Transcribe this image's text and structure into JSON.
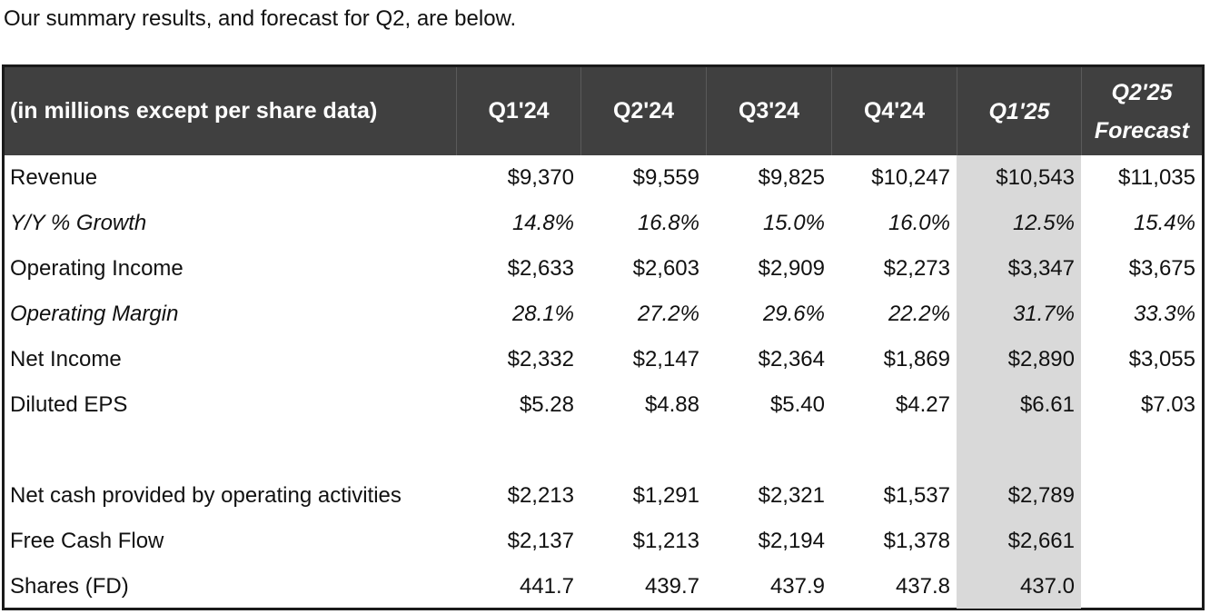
{
  "intro": "Our summary results, and forecast for Q2, are below.",
  "table": {
    "header": {
      "label": "(in millions except per share data)",
      "columns": [
        "Q1'24",
        "Q2'24",
        "Q3'24",
        "Q4'24",
        "Q1'25"
      ],
      "forecast_line1": "Q2'25",
      "forecast_line2": "Forecast"
    },
    "rows": [
      {
        "label": "Revenue",
        "values": [
          "$9,370",
          "$9,559",
          "$9,825",
          "$10,247",
          "$10,543",
          "$11,035"
        ]
      },
      {
        "label": "Y/Y % Growth",
        "values": [
          "14.8%",
          "16.8%",
          "15.0%",
          "16.0%",
          "12.5%",
          "15.4%"
        ]
      },
      {
        "label": "Operating Income",
        "values": [
          "$2,633",
          "$2,603",
          "$2,909",
          "$2,273",
          "$3,347",
          "$3,675"
        ]
      },
      {
        "label": "Operating Margin",
        "values": [
          "28.1%",
          "27.2%",
          "29.6%",
          "22.2%",
          "31.7%",
          "33.3%"
        ]
      },
      {
        "label": "Net Income",
        "values": [
          "$2,332",
          "$2,147",
          "$2,364",
          "$1,869",
          "$2,890",
          "$3,055"
        ]
      },
      {
        "label": "Diluted EPS",
        "values": [
          "$5.28",
          "$4.88",
          "$5.40",
          "$4.27",
          "$6.61",
          "$7.03"
        ]
      },
      {
        "label": "",
        "values": [
          "",
          "",
          "",
          "",
          "",
          ""
        ]
      },
      {
        "label": "Net cash provided by operating activities",
        "values": [
          "$2,213",
          "$1,291",
          "$2,321",
          "$1,537",
          "$2,789",
          ""
        ]
      },
      {
        "label": "Free Cash Flow",
        "values": [
          "$2,137",
          "$1,213",
          "$2,194",
          "$1,378",
          "$2,661",
          ""
        ]
      },
      {
        "label": "Shares (FD)",
        "values": [
          "441.7",
          "439.7",
          "437.9",
          "437.8",
          "437.0",
          ""
        ]
      }
    ]
  }
}
